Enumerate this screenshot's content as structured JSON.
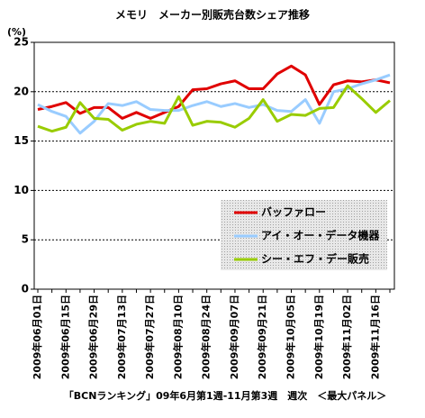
{
  "chart_data": {
    "type": "line",
    "title": "メモリ　メーカー別販売台数シェア推移",
    "y_label": "(%)",
    "footer": "「BCNランキング」09年6月第1週-11月第3週　週次　＜最大パネル＞",
    "categories": [
      "2009年06月01日",
      null,
      "2009年06月15日",
      null,
      "2009年06月29日",
      null,
      "2009年07月13日",
      null,
      "2009年07月27日",
      null,
      "2009年08月10日",
      null,
      "2009年08月24日",
      null,
      "2009年09月07日",
      null,
      "2009年09月21日",
      null,
      "2009年10月05日",
      null,
      "2009年10月19日",
      null,
      "2009年11月02日",
      null,
      "2009年11月16日",
      null
    ],
    "series": [
      {
        "name": "バッファロー",
        "color": "#e00000",
        "values": [
          18.2,
          18.5,
          18.9,
          17.8,
          18.4,
          18.4,
          17.3,
          17.9,
          17.3,
          17.9,
          18.5,
          20.2,
          20.3,
          20.8,
          21.1,
          20.3,
          20.3,
          21.8,
          22.6,
          21.7,
          18.7,
          20.7,
          21.1,
          21.0,
          21.2,
          20.9
        ]
      },
      {
        "name": "アイ・オー・データ機器",
        "color": "#99ccff",
        "values": [
          18.7,
          18.0,
          17.5,
          15.8,
          17.0,
          18.8,
          18.6,
          19.0,
          18.2,
          18.1,
          18.1,
          18.6,
          19.0,
          18.5,
          18.8,
          18.4,
          18.7,
          18.1,
          18.0,
          19.2,
          16.8,
          20.0,
          20.3,
          20.8,
          21.2,
          21.7
        ]
      },
      {
        "name": "シー・エフ・デー販売",
        "color": "#99cc00",
        "values": [
          16.5,
          16.0,
          16.4,
          18.9,
          17.3,
          17.2,
          16.1,
          16.7,
          17.0,
          16.8,
          19.5,
          16.6,
          17.0,
          16.9,
          16.4,
          17.3,
          19.2,
          17.0,
          17.7,
          17.6,
          18.3,
          18.4,
          20.6,
          19.3,
          17.9,
          19.1
        ]
      }
    ],
    "ylim": [
      0,
      25
    ],
    "yticks": [
      0,
      5,
      10,
      15,
      20,
      25
    ],
    "grid": true
  }
}
